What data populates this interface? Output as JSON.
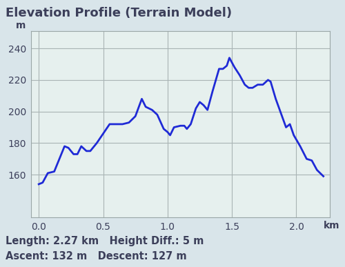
{
  "chart_data": {
    "type": "line",
    "title": "Elevation Profile (Terrain Model)",
    "xlabel": "km",
    "ylabel": "m",
    "x": [
      0.0,
      0.03,
      0.07,
      0.12,
      0.17,
      0.2,
      0.23,
      0.27,
      0.3,
      0.33,
      0.37,
      0.4,
      0.45,
      0.5,
      0.55,
      0.6,
      0.65,
      0.7,
      0.75,
      0.8,
      0.83,
      0.88,
      0.92,
      0.97,
      1.0,
      1.02,
      1.05,
      1.1,
      1.13,
      1.15,
      1.18,
      1.22,
      1.25,
      1.28,
      1.31,
      1.35,
      1.4,
      1.43,
      1.46,
      1.48,
      1.52,
      1.56,
      1.6,
      1.63,
      1.66,
      1.7,
      1.74,
      1.78,
      1.8,
      1.84,
      1.88,
      1.92,
      1.95,
      1.98,
      2.03,
      2.08,
      2.12,
      2.16,
      2.21
    ],
    "values": [
      154,
      155,
      161,
      162,
      172,
      178,
      177,
      173,
      173,
      178,
      175,
      175,
      180,
      186,
      192,
      192,
      192,
      193,
      197,
      208,
      203,
      201,
      198,
      189,
      187,
      185,
      190,
      191,
      191,
      189,
      192,
      202,
      206,
      204,
      201,
      213,
      227,
      227,
      229,
      234,
      228,
      223,
      217,
      215,
      215,
      217,
      217,
      220,
      219,
      208,
      199,
      190,
      192,
      185,
      178,
      170,
      169,
      163,
      159
    ],
    "color": "#1f2ad6",
    "xlim": [
      -0.06,
      2.26
    ],
    "ylim": [
      133,
      251
    ],
    "xticks": [
      0.0,
      0.5,
      1.0,
      1.5,
      2.0
    ],
    "yticks": [
      160,
      180,
      200,
      220,
      240
    ],
    "grid": true,
    "notes": [
      "Length: 2.27 km   Height Diff.: 5 m",
      "Ascent: 132 m   Descent: 127 m"
    ]
  }
}
